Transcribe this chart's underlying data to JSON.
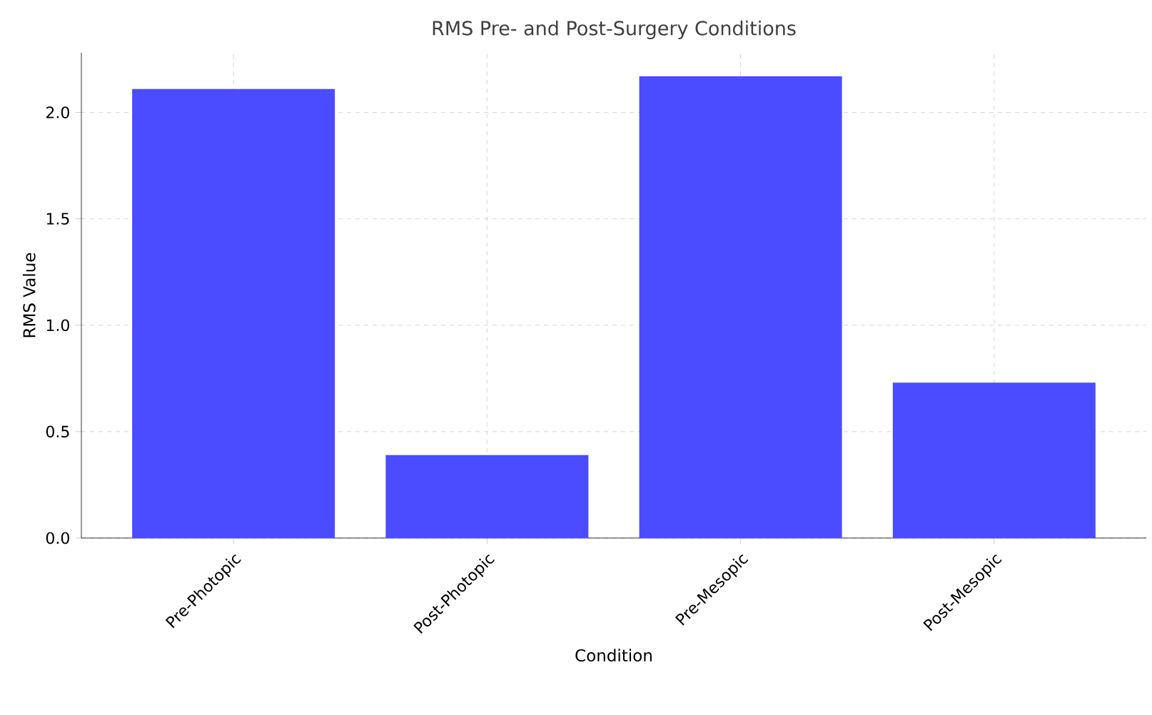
{
  "chart_data": {
    "type": "bar",
    "title": "RMS Pre- and Post-Surgery Conditions",
    "xlabel": "Condition",
    "ylabel": "RMS Value",
    "categories": [
      "Pre-Photopic",
      "Post-Photopic",
      "Pre-Mesopic",
      "Post-Mesopic"
    ],
    "values": [
      2.11,
      0.39,
      2.17,
      0.73
    ],
    "color": "#4b4bff",
    "ylim": [
      0,
      2.28
    ],
    "yticks": [
      {
        "value": 0,
        "label": "0.0"
      },
      0.5,
      {
        "value": 1,
        "label": "1.0"
      },
      1.5,
      {
        "value": 2,
        "label": "2.0"
      }
    ],
    "grid": true
  }
}
